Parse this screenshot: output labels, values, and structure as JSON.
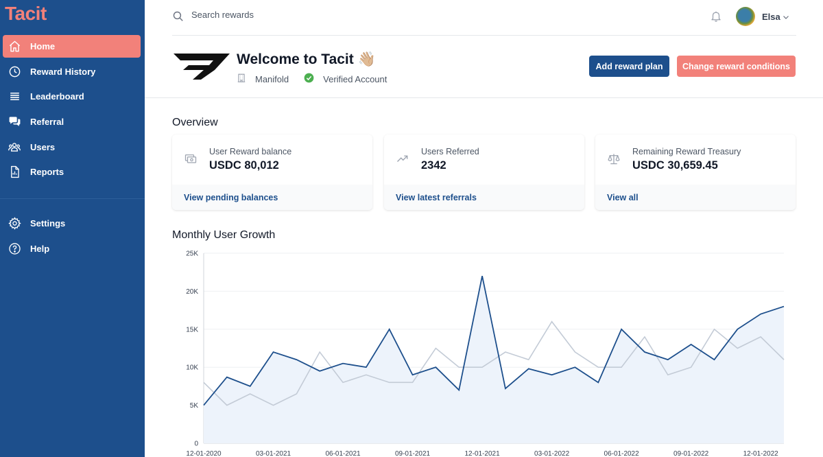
{
  "brand": "Tacit",
  "sidebar": {
    "items": [
      {
        "label": "Home",
        "icon": "home-icon",
        "active": true
      },
      {
        "label": "Reward History",
        "icon": "clock-icon"
      },
      {
        "label": "Leaderboard",
        "icon": "list-icon"
      },
      {
        "label": "Referral",
        "icon": "chat-icon"
      },
      {
        "label": "Users",
        "icon": "users-icon"
      },
      {
        "label": "Reports",
        "icon": "document-icon"
      }
    ],
    "bottom_items": [
      {
        "label": "Settings",
        "icon": "gear-icon"
      },
      {
        "label": "Help",
        "icon": "help-icon"
      }
    ]
  },
  "topbar": {
    "search_placeholder": "Search rewards",
    "user_name": "Elsa"
  },
  "header": {
    "welcome": "Welcome to Tacit 👋🏼",
    "company": "Manifold",
    "verified": "Verified Account",
    "add_plan_label": "Add reward plan",
    "change_conditions_label": "Change reward conditions"
  },
  "overview": {
    "title": "Overview",
    "cards": [
      {
        "label": "User Reward balance",
        "value": "USDC 80,012",
        "link": "View pending balances",
        "icon": "cash-icon"
      },
      {
        "label": "Users Referred",
        "value": "2342",
        "link": "View latest referrals",
        "icon": "trending-up-icon"
      },
      {
        "label": "Remaining Reward Treasury",
        "value": "USDC 30,659.45",
        "link": "View all",
        "icon": "scale-icon"
      }
    ]
  },
  "colors": {
    "sidebar": "#1d4f8c",
    "accent": "#f2817a",
    "primary_line": "#1d4f8c",
    "secondary_line": "#c3cbd6",
    "area_fill": "#edf3fb"
  },
  "chart_data": {
    "type": "area",
    "title": "Monthly User Growth",
    "xlabel": "",
    "ylabel": "",
    "ylim": [
      0,
      25000
    ],
    "y_ticks": [
      0,
      5000,
      10000,
      15000,
      20000,
      25000
    ],
    "y_tick_labels": [
      "0",
      "5K",
      "10K",
      "15K",
      "20K",
      "25K"
    ],
    "x_tick_labels": [
      "12-01-2020",
      "03-01-2021",
      "06-01-2021",
      "09-01-2021",
      "12-01-2021",
      "03-01-2022",
      "06-01-2022",
      "09-01-2022",
      "12-01-2022"
    ],
    "x": [
      "12-01-2020",
      "01-01-2021",
      "02-01-2021",
      "03-01-2021",
      "04-01-2021",
      "05-01-2021",
      "06-01-2021",
      "07-01-2021",
      "08-01-2021",
      "09-01-2021",
      "10-01-2021",
      "11-01-2021",
      "12-01-2021",
      "01-01-2022",
      "02-01-2022",
      "03-01-2022",
      "04-01-2022",
      "05-01-2022",
      "06-01-2022",
      "07-01-2022",
      "08-01-2022",
      "09-01-2022",
      "10-01-2022",
      "11-01-2022",
      "12-01-2022",
      "01-01-2023"
    ],
    "grid": true,
    "series": [
      {
        "values": [
          5000,
          8700,
          7500,
          12000,
          11000,
          9500,
          10500,
          10000,
          15000,
          9000,
          10000,
          7000,
          22000,
          7200,
          9800,
          9000,
          10000,
          8000,
          15000,
          12000,
          11000,
          13000,
          11000,
          15000,
          17000,
          18000
        ]
      },
      {
        "values": [
          8000,
          5000,
          6500,
          5000,
          6500,
          12000,
          8000,
          9000,
          8000,
          8000,
          12500,
          10000,
          10000,
          12000,
          11000,
          16000,
          12000,
          10000,
          10000,
          14000,
          9000,
          10000,
          15000,
          12500,
          14000,
          11000
        ]
      }
    ]
  }
}
